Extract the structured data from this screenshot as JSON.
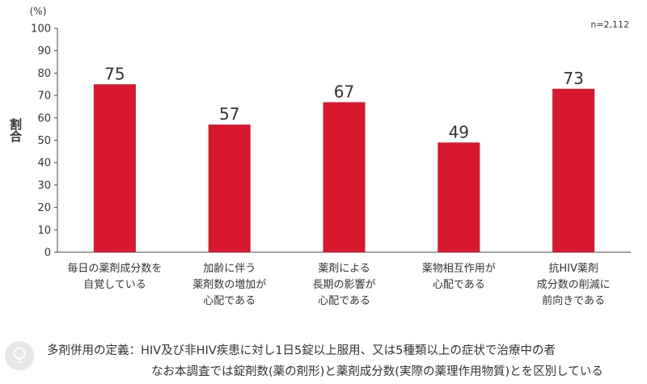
{
  "chart_data": {
    "type": "bar",
    "categories": [
      [
        "毎日の薬剤成分数を",
        "自覚している"
      ],
      [
        "加齢に伴う",
        "薬剤数の増加が",
        "心配である"
      ],
      [
        "薬剤による",
        "長期の影響が",
        "心配である"
      ],
      [
        "薬物相互作用が",
        "心配である"
      ],
      [
        "抗HIV薬剤",
        "成分数の削減に",
        "前向きである"
      ]
    ],
    "values": [
      75,
      57,
      67,
      49,
      73
    ],
    "ylabel": "割合",
    "unit_label": "(%)",
    "sample_size": "n=2,112",
    "ylim": [
      0,
      100
    ],
    "yticks": [
      0,
      10,
      20,
      30,
      40,
      50,
      60,
      70,
      80,
      90,
      100
    ],
    "grid": false,
    "bar_color": "#d8192d"
  },
  "note": {
    "line1": "多剤併用の定義：HIV及び非HIV疾患に対し1日5錠以上服用、又は5種類以上の症状で治療中の者",
    "line2": "なお本調査では錠剤数(薬の剤形)と薬剤成分数(実際の薬理作用物質)とを区別している",
    "icon": "lightbulb-icon"
  }
}
